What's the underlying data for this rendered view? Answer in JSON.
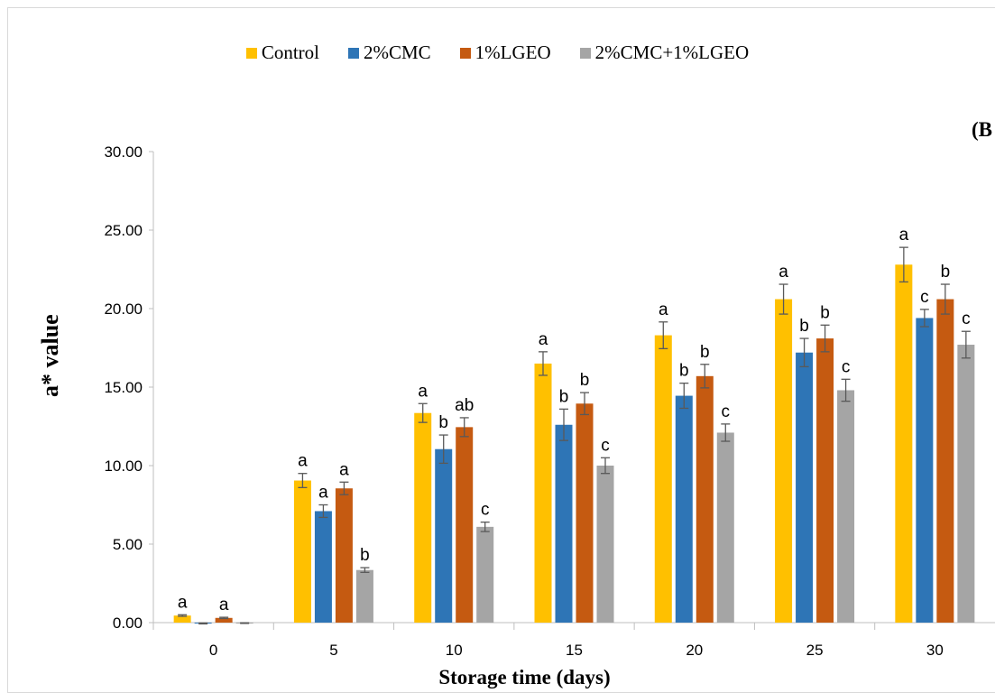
{
  "chart_data": {
    "type": "bar",
    "panel_label": "(B",
    "xlabel": "Storage time (days)",
    "ylabel": "a* value",
    "ylim": [
      0,
      30
    ],
    "yticks": [
      "0.00",
      "5.00",
      "10.00",
      "15.00",
      "20.00",
      "25.00",
      "30.00"
    ],
    "categories": [
      "0",
      "5",
      "10",
      "15",
      "20",
      "25",
      "30"
    ],
    "legend_position": "top",
    "error_bars": true,
    "series": [
      {
        "name": "Control",
        "color": "#FFC000",
        "values": [
          0.45,
          9.05,
          13.35,
          16.5,
          18.3,
          20.6,
          22.8
        ],
        "errors": [
          0.05,
          0.45,
          0.6,
          0.75,
          0.85,
          0.95,
          1.1
        ],
        "labels": [
          "a",
          "a",
          "a",
          "a",
          "a",
          "a",
          "a"
        ]
      },
      {
        "name": "2%CMC",
        "color": "#2E75B6",
        "values": [
          -0.05,
          7.1,
          11.05,
          12.6,
          14.45,
          17.2,
          19.4
        ],
        "errors": [
          0.03,
          0.4,
          0.9,
          1.0,
          0.8,
          0.9,
          0.55
        ],
        "labels": [
          "",
          "a",
          "b",
          "b",
          "b",
          "b",
          "c"
        ]
      },
      {
        "name": "1%LGEO",
        "color": "#C55A11",
        "values": [
          0.3,
          8.55,
          12.45,
          13.95,
          15.7,
          18.1,
          20.6
        ],
        "errors": [
          0.04,
          0.4,
          0.6,
          0.7,
          0.75,
          0.85,
          0.95
        ],
        "labels": [
          "a",
          "a",
          "ab",
          "b",
          "b",
          "b",
          "b"
        ]
      },
      {
        "name": "2%CMC+1%LGEO",
        "color": "#A5A5A5",
        "values": [
          -0.03,
          3.35,
          6.1,
          10.0,
          12.1,
          14.8,
          17.7
        ],
        "errors": [
          0.02,
          0.15,
          0.3,
          0.5,
          0.55,
          0.7,
          0.85
        ],
        "labels": [
          "",
          "b",
          "c",
          "c",
          "c",
          "c",
          "c"
        ]
      }
    ]
  }
}
